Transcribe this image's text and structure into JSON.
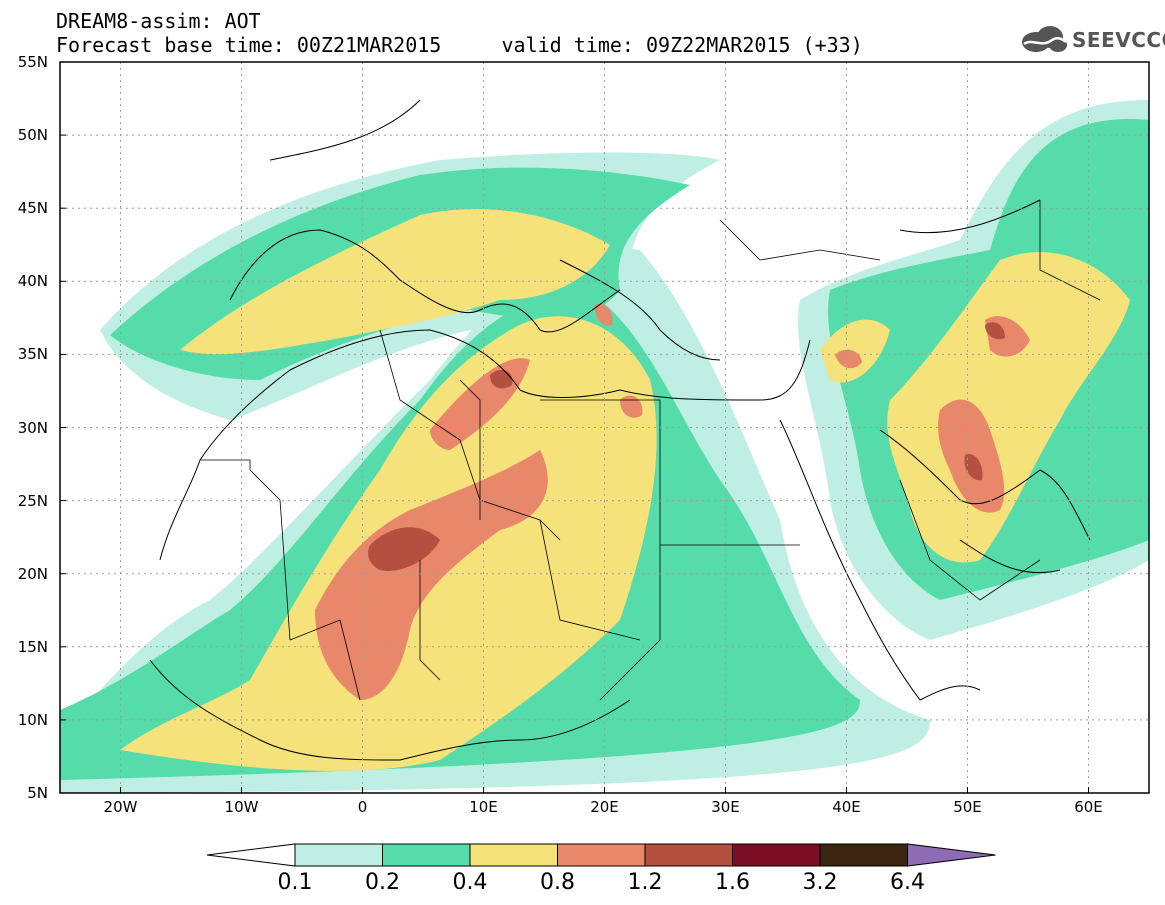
{
  "title": {
    "line1": "DREAM8-assim: AOT",
    "line2": "Forecast base time: 00Z21MAR2015     valid time: 09Z22MAR2015 (+33)"
  },
  "logo": {
    "text": "SEEVCCC",
    "icon": "cloud-icon"
  },
  "map": {
    "lat_labels": [
      "55N",
      "50N",
      "45N",
      "40N",
      "35N",
      "30N",
      "25N",
      "20N",
      "15N",
      "10N",
      "5N"
    ],
    "lon_labels": [
      "20W",
      "10W",
      "0",
      "10E",
      "20E",
      "30E",
      "40E",
      "50E",
      "60E"
    ],
    "lon_range": [
      -25,
      65
    ],
    "lat_range": [
      5,
      55
    ]
  },
  "colorbar": {
    "colors": [
      "#ffffff",
      "#bfeee3",
      "#55dcaa",
      "#f5e27a",
      "#e8876a",
      "#b4503f",
      "#7a0e25",
      "#3a2510",
      "#8e6cb5"
    ],
    "labels": [
      "0.1",
      "0.2",
      "0.4",
      "0.8",
      "1.2",
      "1.6",
      "3.2",
      "6.4"
    ]
  }
}
